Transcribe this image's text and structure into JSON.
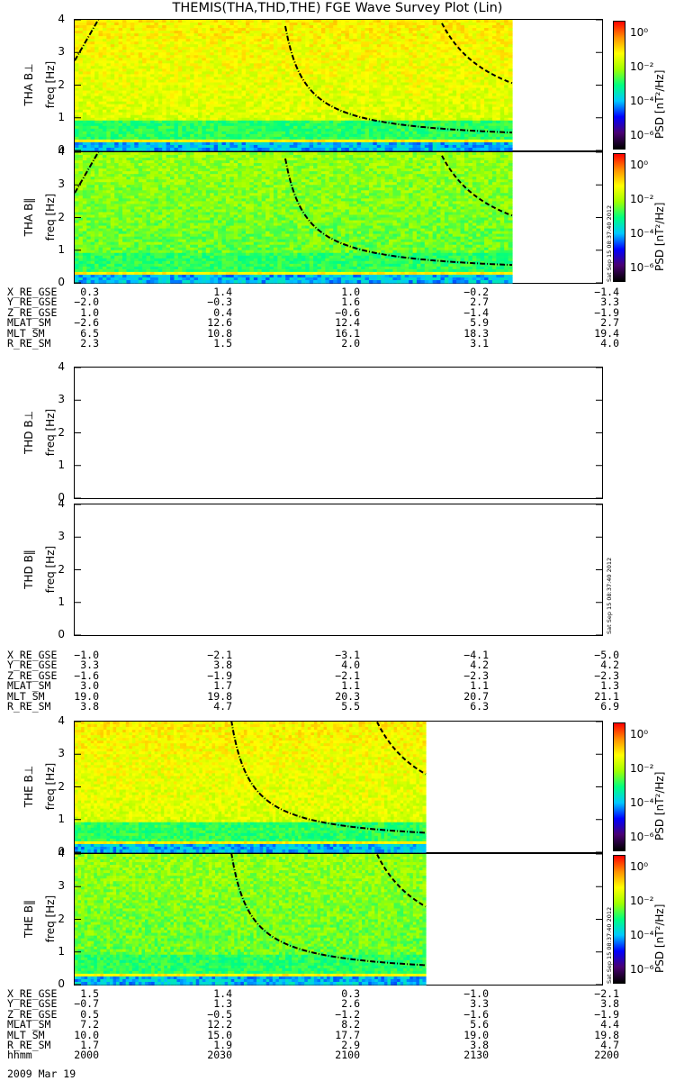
{
  "title": "THEMIS(THA,THD,THE) FGE Wave Survey Plot (Lin)",
  "colorbar": {
    "title": "PSD [nT²/Hz]",
    "ticks": [
      "10⁰",
      "10⁻²",
      "10⁻⁴",
      "10⁻⁶"
    ],
    "colors": [
      "#000000",
      "#4a0073",
      "#0000ff",
      "#00c8ff",
      "#00ff80",
      "#a0ff00",
      "#ffff00",
      "#ff9000",
      "#ff0000"
    ]
  },
  "stamp": "Sat Sep 15 08:37:40 2012",
  "panels": [
    {
      "id": "tha-bperp",
      "station": "THA",
      "component": "B⊥",
      "ylabel_top": "THA B⊥",
      "ylabel": "freq [Hz]",
      "yticks": [
        "4",
        "3",
        "2",
        "1",
        "0"
      ],
      "has_data": true,
      "data_end_frac": 0.83,
      "curve_shift": 0.0
    },
    {
      "id": "tha-bpar",
      "station": "THA",
      "component": "B‖",
      "ylabel_top": "THA B‖",
      "ylabel": "freq [Hz]",
      "yticks": [
        "4",
        "3",
        "2",
        "1",
        "0"
      ],
      "has_data": true,
      "data_end_frac": 0.83,
      "curve_shift": 0.0
    },
    {
      "id": "thd-bperp",
      "station": "THD",
      "component": "B⊥",
      "ylabel_top": "THD B⊥",
      "ylabel": "freq [Hz]",
      "yticks": [
        "4",
        "3",
        "2",
        "1",
        "0"
      ],
      "has_data": false
    },
    {
      "id": "thd-bpar",
      "station": "THD",
      "component": "B‖",
      "ylabel_top": "THD B‖",
      "ylabel": "freq [Hz]",
      "yticks": [
        "4",
        "3",
        "2",
        "1",
        "0"
      ],
      "has_data": false
    },
    {
      "id": "the-bperp",
      "station": "THE",
      "component": "B⊥",
      "ylabel_top": "THE B⊥",
      "ylabel": "freq [Hz]",
      "yticks": [
        "4",
        "3",
        "2",
        "1",
        "0"
      ],
      "has_data": true,
      "data_end_frac": 0.665,
      "curve_shift": -0.1
    },
    {
      "id": "the-bpar",
      "station": "THE",
      "component": "B‖",
      "ylabel_top": "THE B‖",
      "ylabel": "freq [Hz]",
      "yticks": [
        "4",
        "3",
        "2",
        "1",
        "0"
      ],
      "has_data": true,
      "data_end_frac": 0.665,
      "curve_shift": -0.1
    }
  ],
  "ephemeris": [
    {
      "id": "tha-ephem",
      "rows": [
        {
          "name": "X_RE_GSE",
          "values": [
            "0.3",
            "1.4",
            "1.0",
            "−0.2",
            "−1.4"
          ]
        },
        {
          "name": "Y_RE_GSE",
          "values": [
            "−2.0",
            "−0.3",
            "1.6",
            "2.7",
            "3.3"
          ]
        },
        {
          "name": "Z_RE_GSE",
          "values": [
            "1.0",
            "0.4",
            "−0.6",
            "−1.4",
            "−1.9"
          ]
        },
        {
          "name": "MLAT_SM",
          "values": [
            "−2.6",
            "12.6",
            "12.4",
            "5.9",
            "2.7"
          ]
        },
        {
          "name": "MLT_SM",
          "values": [
            "6.5",
            "10.8",
            "16.1",
            "18.3",
            "19.4"
          ]
        },
        {
          "name": "R_RE_SM",
          "values": [
            "2.3",
            "1.5",
            "2.0",
            "3.1",
            "4.0"
          ]
        }
      ]
    },
    {
      "id": "thd-ephem",
      "rows": [
        {
          "name": "X_RE_GSE",
          "values": [
            "−1.0",
            "−2.1",
            "−3.1",
            "−4.1",
            "−5.0"
          ]
        },
        {
          "name": "Y_RE_GSE",
          "values": [
            "3.3",
            "3.8",
            "4.0",
            "4.2",
            "4.2"
          ]
        },
        {
          "name": "Z_RE_GSE",
          "values": [
            "−1.6",
            "−1.9",
            "−2.1",
            "−2.3",
            "−2.3"
          ]
        },
        {
          "name": "MLAT_SM",
          "values": [
            "3.0",
            "1.7",
            "1.1",
            "1.1",
            "1.3"
          ]
        },
        {
          "name": "MLT_SM",
          "values": [
            "19.0",
            "19.8",
            "20.3",
            "20.7",
            "21.1"
          ]
        },
        {
          "name": "R_RE_SM",
          "values": [
            "3.8",
            "4.7",
            "5.5",
            "6.3",
            "6.9"
          ]
        }
      ]
    },
    {
      "id": "the-ephem",
      "rows": [
        {
          "name": "X_RE_GSE",
          "values": [
            "1.5",
            "1.4",
            "0.3",
            "−1.0",
            "−2.1"
          ]
        },
        {
          "name": "Y_RE_GSE",
          "values": [
            "−0.7",
            "1.3",
            "2.6",
            "3.3",
            "3.8"
          ]
        },
        {
          "name": "Z_RE_GSE",
          "values": [
            "0.5",
            "−0.5",
            "−1.2",
            "−1.6",
            "−1.9"
          ]
        },
        {
          "name": "MLAT_SM",
          "values": [
            "7.2",
            "12.2",
            "8.2",
            "5.6",
            "4.4"
          ]
        },
        {
          "name": "MLT_SM",
          "values": [
            "10.0",
            "15.0",
            "17.7",
            "19.0",
            "19.8"
          ]
        },
        {
          "name": "R_RE_SM",
          "values": [
            "1.7",
            "1.9",
            "2.9",
            "3.8",
            "4.7"
          ]
        },
        {
          "name": "hhmm",
          "values": [
            "2000",
            "2030",
            "2100",
            "2130",
            "2200"
          ]
        }
      ]
    }
  ],
  "date_label": "2009 Mar 19",
  "chart_data": {
    "type": "heatmap",
    "title": "THEMIS(THA,THD,THE) FGE Wave Survey Plot (Lin)",
    "xlabel": "hhmm",
    "x_ticks": [
      "2000",
      "2030",
      "2100",
      "2130",
      "2200"
    ],
    "ylabel": "freq [Hz]",
    "ylim": [
      0,
      4
    ],
    "colorbar_label": "PSD [nT²/Hz]",
    "colorbar_range_log10": [
      -7,
      1.5
    ],
    "series": [
      {
        "name": "THA B⊥"
      },
      {
        "name": "THA B‖"
      },
      {
        "name": "THD B⊥"
      },
      {
        "name": "THD B‖"
      },
      {
        "name": "THE B⊥"
      },
      {
        "name": "THE B‖"
      }
    ]
  }
}
